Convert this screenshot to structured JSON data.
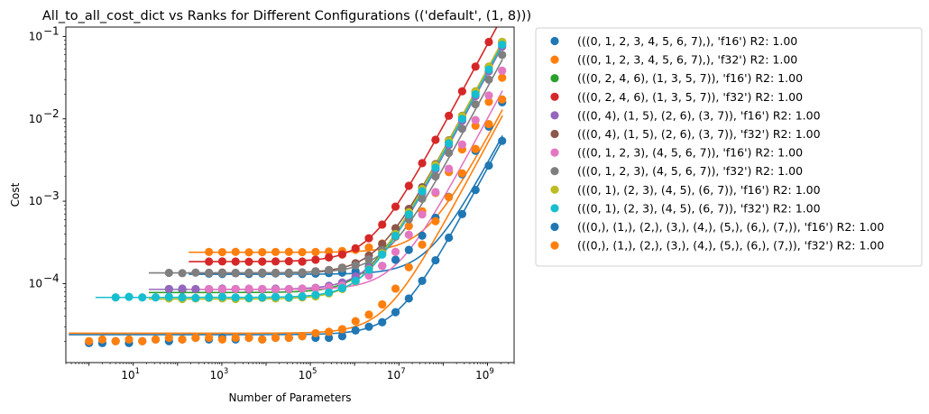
{
  "chart_data": {
    "type": "scatter",
    "title": "All_to_all_cost_dict vs Ranks for Different Configurations (('default', (1, 8)))",
    "xlabel": "Number of Parameters",
    "ylabel": "Cost",
    "xscale": "log",
    "yscale": "log",
    "xlim": [
      0.3,
      4000000000.0
    ],
    "ylim": [
      1.1e-05,
      0.13
    ],
    "x_ticks": [
      {
        "value": 10,
        "base": "10",
        "exp": "1"
      },
      {
        "value": 1000,
        "base": "10",
        "exp": "3"
      },
      {
        "value": 100000,
        "base": "10",
        "exp": "5"
      },
      {
        "value": 10000000,
        "base": "10",
        "exp": "7"
      },
      {
        "value": 1000000000,
        "base": "10",
        "exp": "9"
      }
    ],
    "y_ticks": [
      {
        "value": 0.0001,
        "base": "10",
        "exp": "−4"
      },
      {
        "value": 0.001,
        "base": "10",
        "exp": "−3"
      },
      {
        "value": 0.01,
        "base": "10",
        "exp": "−2"
      },
      {
        "value": 0.1,
        "base": "10",
        "exp": "−1"
      }
    ],
    "grid": false,
    "legend_position": "outside-right",
    "x": [
      1,
      2,
      4,
      8,
      16,
      32,
      64,
      128,
      256,
      512,
      1024,
      2048,
      4096,
      8192,
      16384,
      32768,
      65536,
      131072,
      262144,
      524288,
      1048576,
      2097152,
      4194304,
      8388608,
      16777216,
      33554432,
      67108864,
      134217728,
      268435456,
      536870912,
      1073741824,
      2147483648
    ],
    "series": [
      {
        "name": "(((0, 1, 2, 3, 4, 5, 6, 7),), 'f16') R2: 1.00",
        "color": "#1f77b4",
        "start": 9,
        "base": 0.00013,
        "slope": 2.8e-12,
        "y": [
          null,
          null,
          null,
          null,
          null,
          null,
          null,
          null,
          null,
          0.000132,
          0.000131,
          0.000134,
          0.000131,
          0.000132,
          0.000133,
          0.000132,
          0.000131,
          0.000132,
          0.000134,
          0.000136,
          0.000141,
          0.000149,
          0.000164,
          0.000195,
          0.000257,
          0.000382,
          0.00063,
          0.00113,
          0.00212,
          0.00409,
          0.00804,
          0.0159
        ]
      },
      {
        "name": "(((0, 1, 2, 3, 4, 5, 6, 7),), 'f32') R2: 1.00",
        "color": "#ff7f0e",
        "start": 9,
        "base": 0.00024,
        "slope": 5.8e-12,
        "y": [
          null,
          null,
          null,
          null,
          null,
          null,
          null,
          null,
          null,
          0.000242,
          0.000241,
          0.000243,
          0.00024,
          0.000241,
          0.000242,
          0.000243,
          0.000241,
          0.000242,
          0.000245,
          0.000248,
          0.000257,
          0.000275,
          0.000307,
          0.000371,
          0.000499,
          0.000754,
          0.00126,
          0.00226,
          0.00426,
          0.00824,
          0.0161,
          0.0316
        ]
      },
      {
        "name": "(((0, 2, 4, 6), (1, 3, 5, 7)), 'f16') R2: 1.00",
        "color": "#2ca02c",
        "start": 6,
        "base": 7.8e-05,
        "slope": 3.9e-11,
        "y": [
          null,
          null,
          null,
          null,
          null,
          null,
          8.6e-05,
          8.4e-05,
          8.5e-05,
          8.4e-05,
          8.5e-05,
          8.6e-05,
          8.4e-05,
          8.5e-05,
          8.6e-05,
          8.5e-05,
          8.6e-05,
          8.8e-05,
          9.2e-05,
          0.0001,
          0.000121,
          0.000162,
          0.000242,
          0.000406,
          0.000731,
          0.00139,
          0.0027,
          0.00532,
          0.0106,
          0.0211,
          0.0421,
          0.0838
        ]
      },
      {
        "name": "(((0, 2, 4, 6), (1, 3, 5, 7)), 'f32') R2: 1.00",
        "color": "#d62728",
        "start": 9,
        "base": 0.000185,
        "slope": 8e-11,
        "y": [
          null,
          null,
          null,
          null,
          null,
          null,
          null,
          null,
          null,
          0.000185,
          0.000186,
          0.000185,
          0.000184,
          0.000185,
          0.000186,
          0.000187,
          0.000185,
          0.000195,
          0.000208,
          0.000226,
          0.000268,
          0.000355,
          0.000521,
          0.00086,
          0.00154,
          0.0029,
          0.00557,
          0.0109,
          0.0216,
          0.043,
          0.0858,
          0.17
        ]
      },
      {
        "name": "(((0, 4), (1, 5), (2, 6), (3, 7)), 'f16') R2: 1.00",
        "color": "#9467bd",
        "start": 6,
        "base": 8.5e-05,
        "slope": 3.5e-11,
        "y": [
          null,
          null,
          null,
          null,
          null,
          null,
          8.6e-05,
          8.7e-05,
          8.6e-05,
          8.6e-05,
          8.7e-05,
          8.6e-05,
          8.5e-05,
          8.6e-05,
          8.7e-05,
          8.6e-05,
          8.7e-05,
          8.9e-05,
          9.4e-05,
          0.000103,
          0.000122,
          0.000158,
          0.000232,
          0.000379,
          0.000672,
          0.00126,
          0.00243,
          0.00478,
          0.00948,
          0.0189,
          0.0377,
          0.0752
        ]
      },
      {
        "name": "(((0, 4), (1, 5), (2, 6), (3, 7)), 'f32') R2: 1.00",
        "color": "#8c564b",
        "start": 9,
        "base": 0.000135,
        "slope": 4e-11,
        "y": [
          null,
          null,
          null,
          null,
          null,
          null,
          null,
          null,
          null,
          0.000135,
          0.000136,
          0.000134,
          0.000135,
          0.000136,
          0.000135,
          0.000134,
          0.000136,
          0.000141,
          0.000146,
          0.000156,
          0.000177,
          0.000219,
          0.000303,
          0.000471,
          0.000806,
          0.00148,
          0.00282,
          0.0055,
          0.0109,
          0.0216,
          0.043,
          0.0859
        ]
      },
      {
        "name": "(((0, 1, 2, 3), (4, 5, 6, 7)), 'f16') R2: 1.00",
        "color": "#e377c2",
        "start": 9,
        "base": 8.5e-05,
        "slope": 1e-11,
        "y": [
          null,
          null,
          null,
          null,
          null,
          null,
          null,
          null,
          null,
          8.6e-05,
          8.5e-05,
          8.6e-05,
          8.7e-05,
          8.6e-05,
          8.5e-05,
          8.6e-05,
          8.7e-05,
          8.8e-05,
          9e-05,
          9.5e-05,
          0.000105,
          0.000125,
          0.000164,
          0.000243,
          0.000392,
          0.000692,
          0.00129,
          0.00248,
          0.00488,
          0.00966,
          0.0192,
          0.0384
        ]
      },
      {
        "name": "(((0, 1, 2, 3), (4, 5, 6, 7)), 'f32') R2: 1.00",
        "color": "#7f7f7f",
        "start": 6,
        "base": 0.000135,
        "slope": 2.4e-11,
        "y": [
          null,
          null,
          null,
          null,
          null,
          null,
          0.000135,
          0.000134,
          0.000136,
          0.000135,
          0.000134,
          0.000135,
          0.000136,
          0.000135,
          0.000134,
          0.000136,
          0.000137,
          0.000141,
          0.000146,
          0.000153,
          0.000167,
          0.000197,
          0.000255,
          0.000372,
          0.000603,
          0.00107,
          0.002,
          0.00386,
          0.00758,
          0.015,
          0.0299,
          0.0597
        ]
      },
      {
        "name": "(((0, 1), (2, 3), (4, 5), (6, 7)), 'f16') R2: 1.00",
        "color": "#bcbd22",
        "start": 6,
        "base": 6.5e-05,
        "slope": 4e-11,
        "y": [
          null,
          null,
          null,
          null,
          null,
          null,
          6.6e-05,
          6.5e-05,
          6.6e-05,
          6.7e-05,
          6.6e-05,
          6.5e-05,
          6.6e-05,
          6.7e-05,
          6.6e-05,
          6.7e-05,
          6.8e-05,
          7e-05,
          7.6e-05,
          8.6e-05,
          0.000107,
          0.000149,
          0.000233,
          0.0004,
          0.000737,
          0.00141,
          0.00275,
          0.00543,
          0.0108,
          0.0215,
          0.0429,
          0.0859
        ]
      },
      {
        "name": "(((0, 1), (2, 3), (4, 5), (6, 7)), 'f32') R2: 1.00",
        "color": "#17becf",
        "start": 2,
        "base": 6.8e-05,
        "slope": 3.7e-11,
        "y": [
          null,
          null,
          6.8e-05,
          6.9e-05,
          6.8e-05,
          6.8e-05,
          6.9e-05,
          6.8e-05,
          6.7e-05,
          6.8e-05,
          6.9e-05,
          6.8e-05,
          6.7e-05,
          6.8e-05,
          6.9e-05,
          6.8e-05,
          7e-05,
          7.3e-05,
          7.8e-05,
          8.8e-05,
          0.000108,
          0.000147,
          0.000225,
          0.000381,
          0.000693,
          0.00132,
          0.00255,
          0.00503,
          0.00999,
          0.0199,
          0.0397,
          0.0793
        ]
      },
      {
        "name": "(((0,), (1,), (2,), (3,), (4,), (5,), (6,), (7,)), 'f16') R2: 1.00",
        "color": "#1f77b4",
        "start": 0,
        "base": 2.4e-05,
        "slope": 2.5e-12,
        "y": [
          1.9e-05,
          1.9e-05,
          2e-05,
          1.9e-05,
          2e-05,
          2.1e-05,
          2e-05,
          2.1e-05,
          2.2e-05,
          2.1e-05,
          2.2e-05,
          2.1e-05,
          2.2e-05,
          2.1e-05,
          2.2e-05,
          2.2e-05,
          2.3e-05,
          2.2e-05,
          2.2e-05,
          2.3e-05,
          2.7e-05,
          3e-05,
          3.4e-05,
          4.5e-05,
          6.6e-05,
          0.000108,
          0.000192,
          0.000361,
          0.000698,
          0.00137,
          0.00271,
          0.0054
        ]
      },
      {
        "name": "(((0,), (1,), (2,), (3,), (4,), (5,), (6,), (7,)), 'f32') R2: 1.00",
        "color": "#ff7f0e",
        "start": 0,
        "base": 2.5e-05,
        "slope": 5e-12,
        "y": [
          2e-05,
          2.1e-05,
          2e-05,
          2.1e-05,
          2e-05,
          2.1e-05,
          2.2e-05,
          2.1e-05,
          2.2e-05,
          2.2e-05,
          2.1e-05,
          2.2e-05,
          2.2e-05,
          2.1e-05,
          2.2e-05,
          2.2e-05,
          2.3e-05,
          2.5e-05,
          2.6e-05,
          2.8e-05,
          3.5e-05,
          4.2e-05,
          5.6e-05,
          8.7e-05,
          0.000158,
          0.000297,
          0.000572,
          0.00112,
          0.00218,
          0.00431,
          0.00863,
          0.0172
        ]
      }
    ]
  }
}
